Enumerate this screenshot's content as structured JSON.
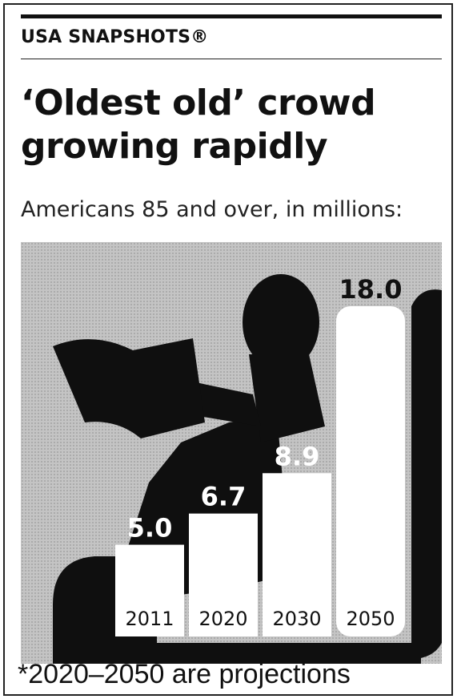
{
  "header": {
    "brand": "USA SNAPSHOTS®",
    "headline_line1": "‘Oldest old’ crowd",
    "headline_line2": "growing rapidly",
    "subtitle": "Americans 85 and over, in millions:"
  },
  "colors": {
    "background_texture": "#bdbdbd",
    "silhouette": "#0f0f0f",
    "bar_fill": "#ffffff",
    "label_text": "#ffffff",
    "category_text": "#111111"
  },
  "chart_data": {
    "type": "bar",
    "categories": [
      "2011",
      "2020",
      "2030",
      "2050"
    ],
    "values": [
      5.0,
      6.7,
      8.9,
      18.0
    ],
    "value_labels": [
      "5.0",
      "6.7",
      "8.9",
      "18.0"
    ],
    "ylim": [
      0,
      18.0
    ],
    "grid": false,
    "legend": "none",
    "unit": "millions"
  },
  "footnote": "*2020–2050 are projections",
  "icons": {
    "illustration": "reading-person-silhouette-icon"
  }
}
